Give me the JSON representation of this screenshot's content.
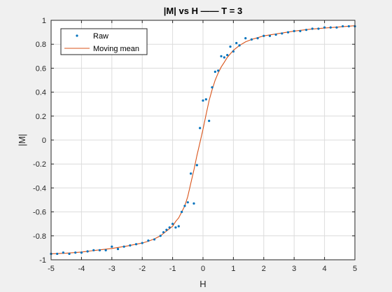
{
  "chart_data": {
    "type": "line",
    "title": "|M| vs H —— T = 3",
    "xlabel": "H",
    "ylabel": "|M|",
    "xlim": [
      -5,
      5
    ],
    "ylim": [
      -1,
      1
    ],
    "xticks": [
      -5,
      -4,
      -3,
      -2,
      -1,
      0,
      1,
      2,
      3,
      4,
      5
    ],
    "yticks": [
      -1,
      -0.8,
      -0.6,
      -0.4,
      -0.2,
      0,
      0.2,
      0.4,
      0.6,
      0.8,
      1
    ],
    "xtick_labels": [
      "-5",
      "-4",
      "-3",
      "-2",
      "-1",
      "0",
      "1",
      "2",
      "3",
      "4",
      "5"
    ],
    "ytick_labels": [
      "-1",
      "-0.8",
      "-0.6",
      "-0.4",
      "-0.2",
      "0",
      "0.2",
      "0.4",
      "0.6",
      "0.8",
      "1"
    ],
    "grid": true,
    "legend_position": "top-left",
    "colors": {
      "raw": "#0072bd",
      "mean": "#d95319",
      "grid": "#dcdcdc",
      "axes": "#262626"
    },
    "series": [
      {
        "name": "Raw",
        "style": "markers",
        "x": [
          -5.0,
          -4.8,
          -4.6,
          -4.4,
          -4.2,
          -4.0,
          -3.8,
          -3.6,
          -3.4,
          -3.2,
          -3.0,
          -2.8,
          -2.6,
          -2.4,
          -2.2,
          -2.0,
          -1.8,
          -1.6,
          -1.4,
          -1.3,
          -1.2,
          -1.1,
          -1.0,
          -0.9,
          -0.8,
          -0.7,
          -0.6,
          -0.5,
          -0.4,
          -0.3,
          -0.2,
          -0.1,
          0.0,
          0.1,
          0.2,
          0.3,
          0.4,
          0.5,
          0.6,
          0.7,
          0.8,
          0.9,
          1.0,
          1.1,
          1.2,
          1.4,
          1.6,
          1.8,
          2.0,
          2.2,
          2.4,
          2.6,
          2.8,
          3.0,
          3.2,
          3.4,
          3.6,
          3.8,
          4.0,
          4.2,
          4.4,
          4.6,
          4.8,
          5.0
        ],
        "y": [
          -0.95,
          -0.95,
          -0.94,
          -0.95,
          -0.94,
          -0.94,
          -0.93,
          -0.92,
          -0.92,
          -0.92,
          -0.89,
          -0.91,
          -0.89,
          -0.88,
          -0.87,
          -0.86,
          -0.84,
          -0.83,
          -0.8,
          -0.77,
          -0.75,
          -0.73,
          -0.7,
          -0.73,
          -0.72,
          -0.6,
          -0.55,
          -0.52,
          -0.28,
          -0.53,
          -0.21,
          0.1,
          0.33,
          0.34,
          0.16,
          0.44,
          0.57,
          0.58,
          0.7,
          0.69,
          0.71,
          0.78,
          0.74,
          0.81,
          0.79,
          0.85,
          0.84,
          0.85,
          0.87,
          0.87,
          0.88,
          0.89,
          0.9,
          0.91,
          0.91,
          0.92,
          0.93,
          0.93,
          0.94,
          0.94,
          0.94,
          0.95,
          0.95,
          0.95
        ]
      },
      {
        "name": "Moving mean",
        "style": "line",
        "x": [
          -5.0,
          -4.5,
          -4.0,
          -3.5,
          -3.0,
          -2.5,
          -2.0,
          -1.8,
          -1.6,
          -1.4,
          -1.2,
          -1.0,
          -0.9,
          -0.8,
          -0.7,
          -0.6,
          -0.5,
          -0.4,
          -0.3,
          -0.2,
          -0.1,
          0.0,
          0.1,
          0.2,
          0.3,
          0.4,
          0.5,
          0.6,
          0.7,
          0.8,
          1.0,
          1.2,
          1.4,
          1.6,
          1.8,
          2.0,
          2.5,
          3.0,
          3.5,
          4.0,
          4.5,
          5.0
        ],
        "y": [
          -0.95,
          -0.945,
          -0.935,
          -0.92,
          -0.905,
          -0.885,
          -0.86,
          -0.845,
          -0.825,
          -0.8,
          -0.76,
          -0.72,
          -0.68,
          -0.65,
          -0.6,
          -0.55,
          -0.47,
          -0.36,
          -0.25,
          -0.13,
          -0.02,
          0.09,
          0.21,
          0.33,
          0.42,
          0.5,
          0.56,
          0.61,
          0.65,
          0.69,
          0.75,
          0.79,
          0.82,
          0.84,
          0.855,
          0.87,
          0.89,
          0.91,
          0.925,
          0.935,
          0.945,
          0.955
        ]
      }
    ]
  }
}
